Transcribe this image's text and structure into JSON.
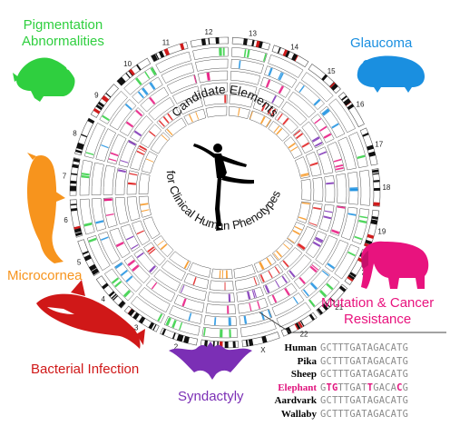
{
  "center_title_top": "Candidate Elements",
  "center_title_bottom": "for Clinical Human Phenotypes",
  "chromosomes": [
    "1",
    "2",
    "3",
    "4",
    "5",
    "6",
    "7",
    "8",
    "9",
    "10",
    "11",
    "12",
    "13",
    "14",
    "15",
    "16",
    "17",
    "18",
    "19",
    "20",
    "21",
    "22",
    "X"
  ],
  "phenotypes": [
    {
      "label_lines": [
        "Pigmentation",
        "Abnormalities"
      ],
      "color": "#2fcf3f",
      "icon": "mole-rat-icon"
    },
    {
      "label_lines": [
        "Glaucoma"
      ],
      "color": "#1a8fe0",
      "icon": "guinea-pig-icon"
    },
    {
      "label_lines": [
        "Mutation & Cancer",
        "Resistance"
      ],
      "color": "#e8137e",
      "icon": "elephant-icon"
    },
    {
      "label_lines": [
        "Syndactyly"
      ],
      "color": "#7b2fb5",
      "icon": "bat-icon"
    },
    {
      "label_lines": [
        "Bacterial Infection"
      ],
      "color": "#e01b1b",
      "icon": "orca-icon"
    },
    {
      "label_lines": [
        "Microcornea"
      ],
      "color": "#f7941d",
      "icon": "dolphin-icon"
    }
  ],
  "alignment": [
    {
      "species": "Human",
      "sequence": "GCTTTGATAGACATG",
      "highlight": []
    },
    {
      "species": "Pika",
      "sequence": "GCTTTGATAGACATG",
      "highlight": []
    },
    {
      "species": "Sheep",
      "sequence": "GCTTTGATAGACATG",
      "highlight": []
    },
    {
      "species": "Elephant",
      "sequence": "GTGTTGATTGACACG",
      "highlight": [
        1,
        2,
        8,
        13
      ],
      "species_color": "#e0147d"
    },
    {
      "species": "Aardvark",
      "sequence": "GCTTTGATAGACATG",
      "highlight": []
    },
    {
      "species": "Wallaby",
      "sequence": "GCTTTGATAGACATG",
      "highlight": []
    }
  ],
  "colors": {
    "track_border": "#555555",
    "ideogram_dark": "#111111",
    "ideogram_red": "#d01c1c"
  }
}
